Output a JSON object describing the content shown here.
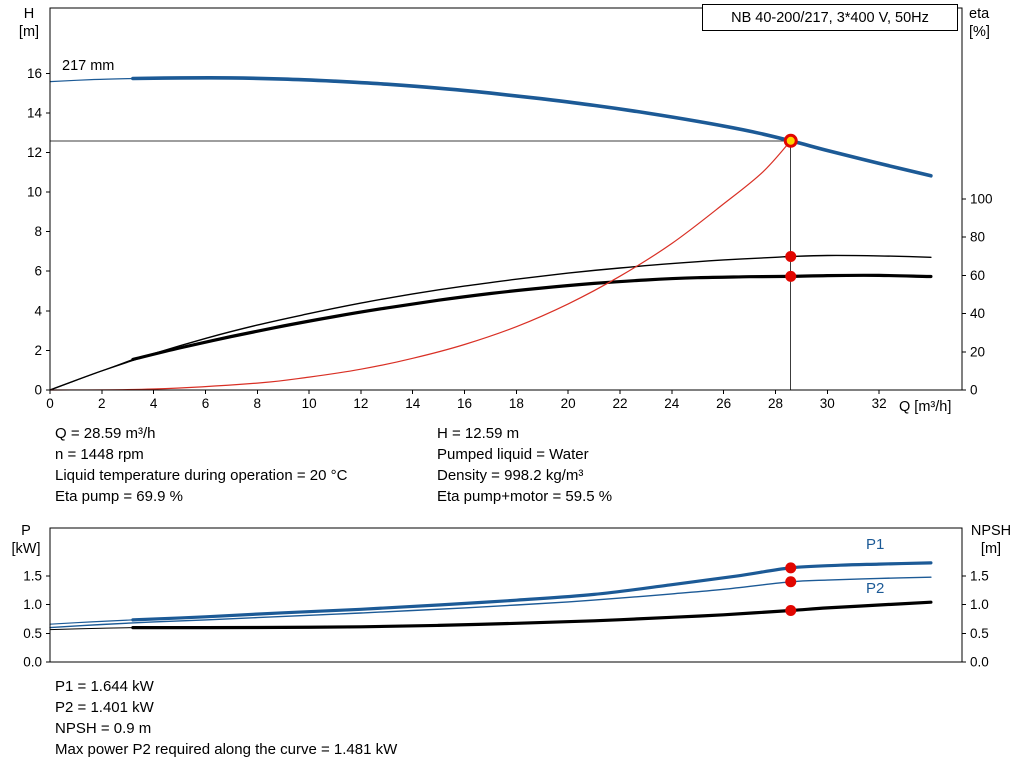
{
  "model_box": "NB 40-200/217, 3*400 V, 50Hz",
  "colors": {
    "blue": "#1c5a96",
    "black": "#000000",
    "red": "#d93025",
    "crosshair": "#3c3c3c",
    "duty_fill": "#ffd400",
    "duty_stroke": "#e10600",
    "marker_red": "#e10600"
  },
  "chart_data": [
    {
      "type": "line",
      "title": "QH and efficiency curves",
      "impeller_label": "217 mm",
      "x_axis": {
        "label": "Q [m³/h]",
        "min": 0,
        "max": 35.2,
        "tick_values": [
          0,
          2,
          4,
          6,
          8,
          10,
          12,
          14,
          16,
          18,
          20,
          22,
          24,
          26,
          28,
          30,
          32
        ],
        "tick_labels": [
          "0",
          "2",
          "4",
          "6",
          "8",
          "10",
          "12",
          "14",
          "16",
          "18",
          "20",
          "22",
          "24",
          "26",
          "28",
          "30",
          "32"
        ]
      },
      "y_left": {
        "title1": "H",
        "title2": "[m]",
        "min": 0,
        "max": 19.3,
        "tick_values": [
          0,
          2,
          4,
          6,
          8,
          10,
          12,
          14,
          16
        ],
        "tick_labels": [
          "0",
          "2",
          "4",
          "6",
          "8",
          "10",
          "12",
          "14",
          "16"
        ]
      },
      "y_right": {
        "title1": "eta",
        "title2": "[%]",
        "min": 0,
        "max": 200,
        "tick_values": [
          0,
          20,
          40,
          60,
          80,
          100
        ],
        "tick_labels": [
          "0",
          "20",
          "40",
          "60",
          "80",
          "100"
        ]
      },
      "series": [
        {
          "name": "qh-curve-thin",
          "axis": "left",
          "color": "blue",
          "width": 1.2,
          "points": [
            [
              0,
              15.58
            ],
            [
              1.6,
              15.68
            ],
            [
              3.2,
              15.74
            ]
          ]
        },
        {
          "name": "qh-curve",
          "axis": "left",
          "color": "blue",
          "width": 3.6,
          "points": [
            [
              3.2,
              15.74
            ],
            [
              5,
              15.77
            ],
            [
              7,
              15.77
            ],
            [
              9,
              15.71
            ],
            [
              11,
              15.6
            ],
            [
              13,
              15.45
            ],
            [
              15,
              15.25
            ],
            [
              17,
              15.0
            ],
            [
              19,
              14.71
            ],
            [
              21,
              14.38
            ],
            [
              23,
              14.0
            ],
            [
              25,
              13.57
            ],
            [
              27,
              13.08
            ],
            [
              28.59,
              12.59
            ],
            [
              30,
              12.1
            ],
            [
              32,
              11.45
            ],
            [
              34,
              10.82
            ]
          ]
        },
        {
          "name": "eta-pump-curve",
          "axis": "right",
          "color": "black",
          "width": 1.4,
          "points": [
            [
              0,
              0
            ],
            [
              2,
              10
            ],
            [
              4,
              19
            ],
            [
              6,
              27
            ],
            [
              8,
              34
            ],
            [
              10,
              40
            ],
            [
              12,
              45.5
            ],
            [
              14,
              50.3
            ],
            [
              16,
              54.4
            ],
            [
              18,
              58
            ],
            [
              20,
              61.2
            ],
            [
              22,
              63.9
            ],
            [
              24,
              66.2
            ],
            [
              26,
              68.1
            ],
            [
              28,
              69.5
            ],
            [
              28.59,
              69.9
            ],
            [
              30,
              70.4
            ],
            [
              32,
              70.2
            ],
            [
              34,
              69.5
            ]
          ]
        },
        {
          "name": "eta-connector",
          "axis": "right",
          "color": "black",
          "width": 1,
          "points": [
            [
              0,
              0
            ],
            [
              1.6,
              8
            ],
            [
              3.2,
              16
            ]
          ]
        },
        {
          "name": "eta-pump-motor-curve",
          "axis": "right",
          "color": "black",
          "width": 3.2,
          "points": [
            [
              3.2,
              16
            ],
            [
              5,
              22
            ],
            [
              7,
              28
            ],
            [
              9,
              33.5
            ],
            [
              11,
              38.5
            ],
            [
              13,
              43
            ],
            [
              15,
              47
            ],
            [
              17,
              50.5
            ],
            [
              19,
              53.4
            ],
            [
              21,
              55.8
            ],
            [
              23,
              57.6
            ],
            [
              25,
              58.8
            ],
            [
              27,
              59.3
            ],
            [
              28.59,
              59.5
            ],
            [
              30,
              59.9
            ],
            [
              32,
              60.0
            ],
            [
              34,
              59.4
            ]
          ]
        },
        {
          "name": "system-curve",
          "axis": "left",
          "color": "red",
          "width": 1.2,
          "points": [
            [
              0,
              0
            ],
            [
              4,
              0.05
            ],
            [
              8,
              0.35
            ],
            [
              10,
              0.65
            ],
            [
              12,
              1.05
            ],
            [
              14,
              1.6
            ],
            [
              16,
              2.3
            ],
            [
              18,
              3.2
            ],
            [
              20,
              4.35
            ],
            [
              22,
              5.75
            ],
            [
              24,
              7.4
            ],
            [
              26,
              9.4
            ],
            [
              27.5,
              11.0
            ],
            [
              28.59,
              12.59
            ]
          ]
        }
      ],
      "crosshair": {
        "x": 28.59,
        "y": 12.59,
        "axis": "left"
      },
      "markers": [
        {
          "type": "duty",
          "x": 28.59,
          "y": 12.59,
          "axis": "left"
        },
        {
          "type": "dot",
          "x": 28.59,
          "y": 69.9,
          "axis": "right"
        },
        {
          "type": "dot",
          "x": 28.59,
          "y": 59.5,
          "axis": "right"
        }
      ]
    },
    {
      "type": "line",
      "title": "Power and NPSH curves",
      "p1_label": "P1",
      "p2_label": "P2",
      "x_axis": {
        "label": "",
        "min": 0,
        "max": 35.2,
        "tick_values": [],
        "tick_labels": []
      },
      "y_left": {
        "title1": "P",
        "title2": "[kW]",
        "min": 0,
        "max": 2.34,
        "tick_values": [
          0,
          0.5,
          1.0,
          1.5
        ],
        "tick_labels": [
          "0.0",
          "0.5",
          "1.0",
          "1.5"
        ]
      },
      "y_right": {
        "title1": "NPSH",
        "title2": "[m]",
        "min": 0,
        "max": 2.34,
        "tick_values": [
          0,
          0.5,
          1.0,
          1.5
        ],
        "tick_labels": [
          "0.0",
          "0.5",
          "1.0",
          "1.5"
        ]
      },
      "series": [
        {
          "name": "p1-curve-thin",
          "axis": "left",
          "color": "blue",
          "width": 1.2,
          "points": [
            [
              0,
              0.66
            ],
            [
              1.6,
              0.7
            ],
            [
              3.2,
              0.735
            ]
          ]
        },
        {
          "name": "p1-curve",
          "axis": "left",
          "color": "blue",
          "width": 3.2,
          "points": [
            [
              3.2,
              0.735
            ],
            [
              6,
              0.79
            ],
            [
              9,
              0.86
            ],
            [
              12,
              0.92
            ],
            [
              15,
              0.995
            ],
            [
              18,
              1.08
            ],
            [
              21,
              1.18
            ],
            [
              24,
              1.35
            ],
            [
              26.5,
              1.5
            ],
            [
              28.59,
              1.644
            ],
            [
              30.5,
              1.69
            ],
            [
              32,
              1.71
            ],
            [
              34,
              1.73
            ]
          ]
        },
        {
          "name": "p2-curve",
          "axis": "left",
          "color": "blue",
          "width": 1.4,
          "points": [
            [
              0,
              0.6
            ],
            [
              2,
              0.655
            ],
            [
              4,
              0.7
            ],
            [
              6,
              0.735
            ],
            [
              8,
              0.775
            ],
            [
              10,
              0.815
            ],
            [
              12,
              0.855
            ],
            [
              14,
              0.9
            ],
            [
              16,
              0.945
            ],
            [
              18,
              0.995
            ],
            [
              20,
              1.05
            ],
            [
              22,
              1.115
            ],
            [
              24,
              1.19
            ],
            [
              26,
              1.27
            ],
            [
              28.59,
              1.401
            ],
            [
              30,
              1.43
            ],
            [
              32,
              1.46
            ],
            [
              34,
              1.481
            ]
          ]
        },
        {
          "name": "npsh-curve-thin",
          "axis": "left",
          "color": "black",
          "width": 1,
          "points": [
            [
              0,
              0.565
            ],
            [
              1.6,
              0.585
            ],
            [
              3.2,
              0.6
            ]
          ]
        },
        {
          "name": "npsh-curve",
          "axis": "left",
          "color": "black",
          "width": 3.2,
          "points": [
            [
              3.2,
              0.6
            ],
            [
              6,
              0.6
            ],
            [
              9,
              0.605
            ],
            [
              12,
              0.615
            ],
            [
              15,
              0.64
            ],
            [
              18,
              0.675
            ],
            [
              21,
              0.72
            ],
            [
              24,
              0.78
            ],
            [
              26,
              0.825
            ],
            [
              28.59,
              0.9
            ],
            [
              30,
              0.945
            ],
            [
              32,
              0.995
            ],
            [
              34,
              1.045
            ]
          ]
        }
      ],
      "markers": [
        {
          "type": "dot",
          "x": 28.59,
          "y": 1.644,
          "axis": "left"
        },
        {
          "type": "dot",
          "x": 28.59,
          "y": 1.401,
          "axis": "left"
        },
        {
          "type": "dot",
          "x": 28.59,
          "y": 0.9,
          "axis": "left"
        }
      ]
    }
  ],
  "operating_point_top": {
    "left": [
      "Q = 28.59 m³/h",
      "n = 1448 rpm",
      "Liquid temperature during operation = 20 °C",
      "Eta pump = 69.9 %"
    ],
    "right": [
      "H = 12.59 m",
      "Pumped liquid = Water",
      "Density = 998.2 kg/m³",
      "Eta pump+motor = 59.5 %"
    ]
  },
  "operating_point_bottom": {
    "lines": [
      "P1 = 1.644 kW",
      "P2 = 1.401 kW",
      "NPSH = 0.9 m",
      "Max power P2 required along the curve = 1.481 kW"
    ]
  }
}
